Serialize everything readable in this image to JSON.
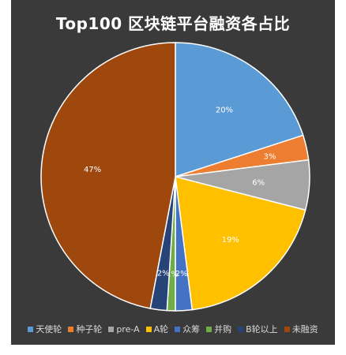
{
  "chart_data": {
    "type": "pie",
    "title": "Top100 区块链平台融资各占比",
    "start_angle_deg": 0,
    "direction": "clockwise",
    "slices": [
      {
        "label": "天使轮",
        "value": 20,
        "value_label": "20%",
        "color": "#5b9bd5"
      },
      {
        "label": "种子轮",
        "value": 3,
        "value_label": "3%",
        "color": "#ed7d31"
      },
      {
        "label": "pre-A",
        "value": 6,
        "value_label": "6%",
        "color": "#a5a5a5"
      },
      {
        "label": "A轮",
        "value": 19,
        "value_label": "19%",
        "color": "#ffc000"
      },
      {
        "label": "众筹",
        "value": 2,
        "value_label": "2%",
        "color": "#4472c4"
      },
      {
        "label": "并购",
        "value": 1,
        "value_label": "1%",
        "color": "#70ad47"
      },
      {
        "label": "B轮以上",
        "value": 2,
        "value_label": "2%",
        "color": "#264478"
      },
      {
        "label": "未融资",
        "value": 47,
        "value_label": "47%",
        "color": "#9e480e"
      }
    ],
    "legend_position": "bottom"
  }
}
